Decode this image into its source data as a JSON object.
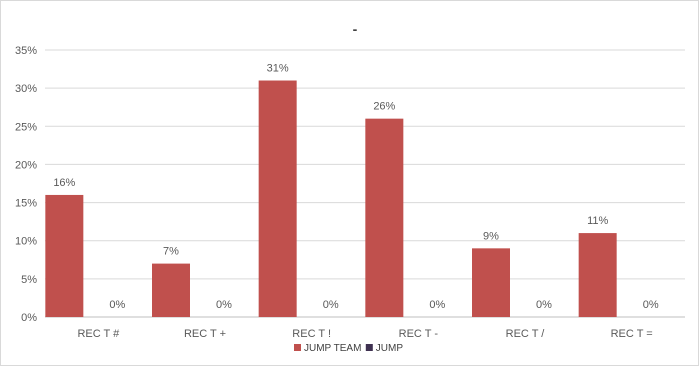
{
  "chart_data": {
    "type": "bar",
    "title": "-",
    "xlabel": "",
    "ylabel": "",
    "ylim": [
      0,
      35
    ],
    "yticks": [
      "0%",
      "5%",
      "10%",
      "15%",
      "20%",
      "25%",
      "30%",
      "35%"
    ],
    "grid": true,
    "legend_position": "bottom",
    "categories": [
      "REC T #",
      "REC T +",
      "REC T !",
      "REC T -",
      "REC T /",
      "REC T ="
    ],
    "series": [
      {
        "name": "JUMP TEAM",
        "color": "#c0504d",
        "values": [
          16,
          7,
          31,
          26,
          9,
          11
        ],
        "labels": [
          "16%",
          "7%",
          "31%",
          "26%",
          "9%",
          "11%"
        ]
      },
      {
        "name": "JUMP",
        "color": "#3f3151",
        "values": [
          0,
          0,
          0,
          0,
          0,
          0
        ],
        "labels": [
          "0%",
          "0%",
          "0%",
          "0%",
          "0%",
          "0%"
        ]
      }
    ]
  }
}
